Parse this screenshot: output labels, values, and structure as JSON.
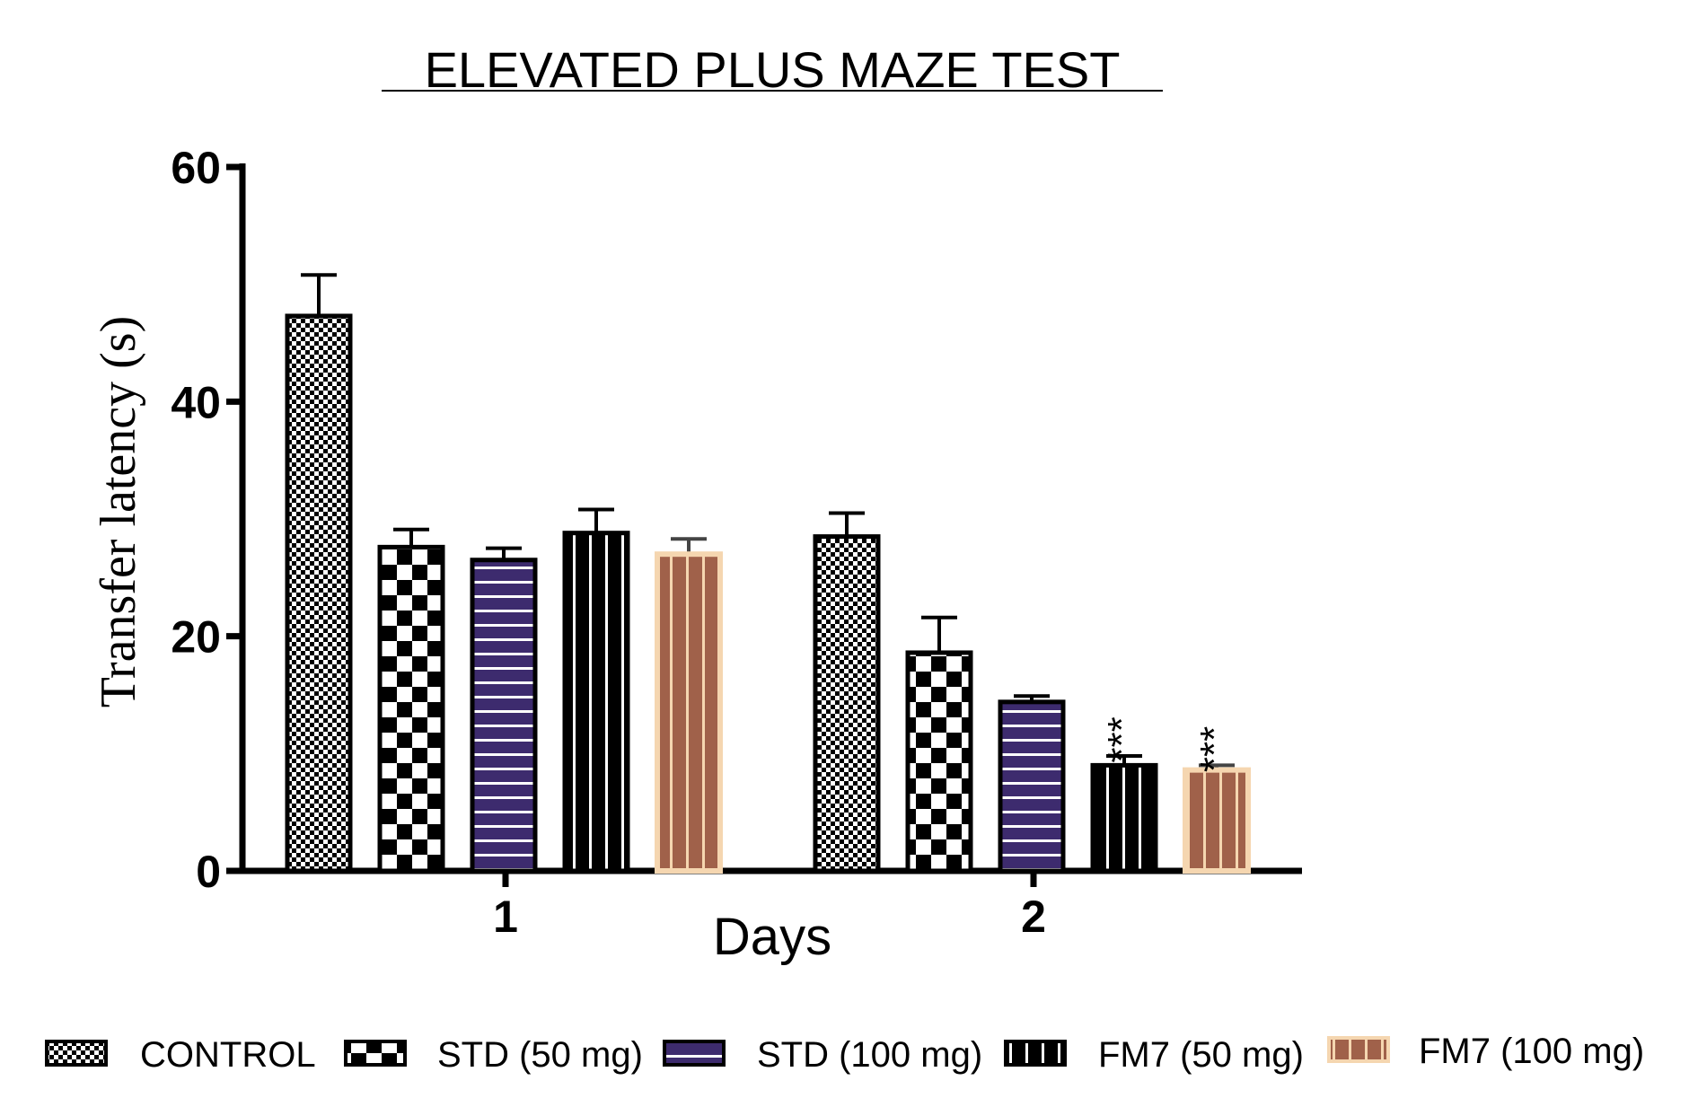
{
  "chart_data": {
    "type": "bar",
    "title": "ELEVATED PLUS MAZE TEST",
    "xlabel": "Days",
    "ylabel": "Transfer latency (s)",
    "categories": [
      "1",
      "2"
    ],
    "ylim": [
      0,
      60
    ],
    "yticks": [
      "0",
      "20",
      "40",
      "60"
    ],
    "grid": false,
    "legend_position": "bottom",
    "series": [
      {
        "name": "CONTROL",
        "values": [
          47.3,
          28.5
        ],
        "errors": [
          3.5,
          2.0
        ],
        "pattern": "fine-check",
        "color": "#000000"
      },
      {
        "name": "STD (50 mg)",
        "values": [
          27.6,
          18.6
        ],
        "errors": [
          1.5,
          3.0
        ],
        "pattern": "checker",
        "color": "#000000"
      },
      {
        "name": "STD (100 mg)",
        "values": [
          26.5,
          14.4
        ],
        "errors": [
          1.0,
          0.5
        ],
        "pattern": "hstripe",
        "color": "#3d2b6e"
      },
      {
        "name": "FM7 (50 mg)",
        "values": [
          28.8,
          9.0
        ],
        "errors": [
          2.0,
          0.8
        ],
        "pattern": "vstripe",
        "color": "#000000"
      },
      {
        "name": "FM7 (100 mg)",
        "values": [
          27.0,
          8.6
        ],
        "errors": [
          1.3,
          0.4
        ],
        "pattern": "vstripe-brown",
        "color": "#a0614a"
      }
    ],
    "annotations": [
      {
        "series": 3,
        "category": 1,
        "text": "***"
      },
      {
        "series": 4,
        "category": 1,
        "text": "***"
      }
    ]
  }
}
